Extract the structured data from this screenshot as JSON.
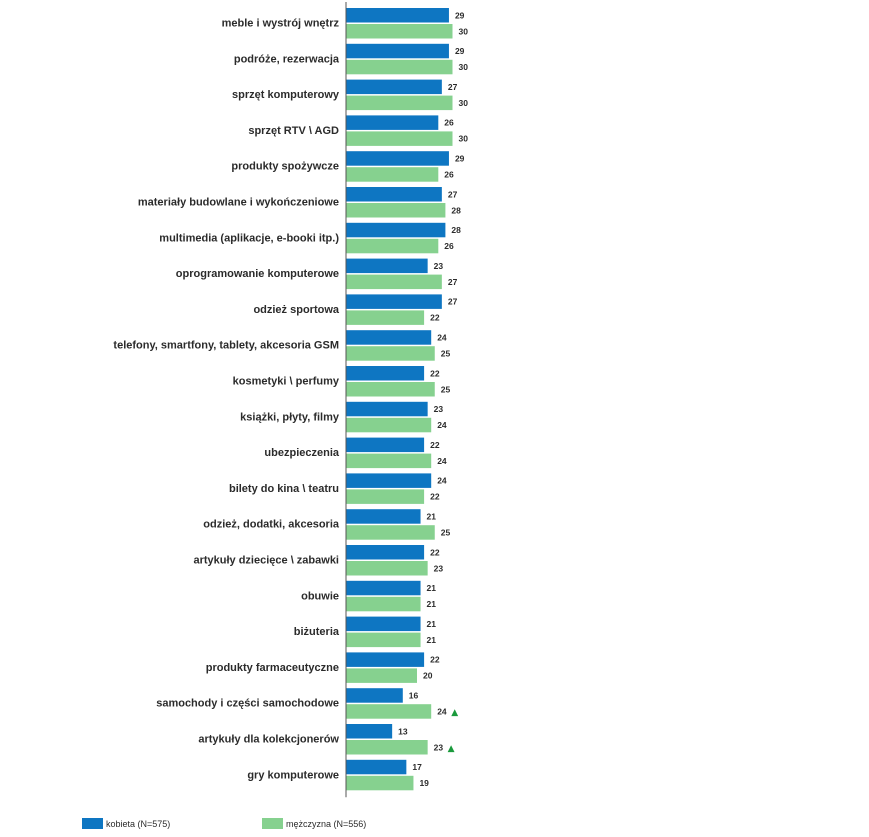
{
  "chart_data": {
    "type": "bar",
    "orientation": "horizontal",
    "categories": [
      "meble i wystrój wnętrz",
      "podróże, rezerwacja",
      "sprzęt komputerowy",
      "sprzęt RTV \\ AGD",
      "produkty spożywcze",
      "materiały budowlane i wykończeniowe",
      "multimedia (aplikacje, e-booki itp.)",
      "oprogramowanie komputerowe",
      "odzież sportowa",
      "telefony, smartfony, tablety, akcesoria GSM",
      "kosmetyki \\ perfumy",
      "książki, płyty, filmy",
      "ubezpieczenia",
      "bilety do kina \\ teatru",
      "odzież, dodatki, akcesoria",
      "artykuły dziecięce \\ zabawki",
      "obuwie",
      "biżuteria",
      "produkty farmaceutyczne",
      "samochody i części samochodowe",
      "artykuły dla kolekcjonerów",
      "gry komputerowe"
    ],
    "series": [
      {
        "name": "kobieta (N=575)",
        "color": "#0e76c2",
        "values": [
          29,
          29,
          27,
          26,
          29,
          27,
          28,
          23,
          27,
          24,
          22,
          23,
          22,
          24,
          21,
          22,
          21,
          21,
          22,
          16,
          13,
          17
        ]
      },
      {
        "name": "mężczyzna (N=556)",
        "color": "#86d18f",
        "values": [
          30,
          30,
          30,
          30,
          26,
          28,
          26,
          27,
          22,
          25,
          25,
          24,
          24,
          22,
          25,
          23,
          21,
          21,
          20,
          24,
          23,
          19
        ]
      }
    ],
    "significance_markers": [
      {
        "category_index": 19,
        "series_index": 1,
        "symbol": "▲"
      },
      {
        "category_index": 20,
        "series_index": 1,
        "symbol": "▲"
      }
    ],
    "marker_color": "#1a9a3c",
    "xlim": [
      0,
      100
    ],
    "grid": false,
    "legend_position": "bottom-left"
  }
}
